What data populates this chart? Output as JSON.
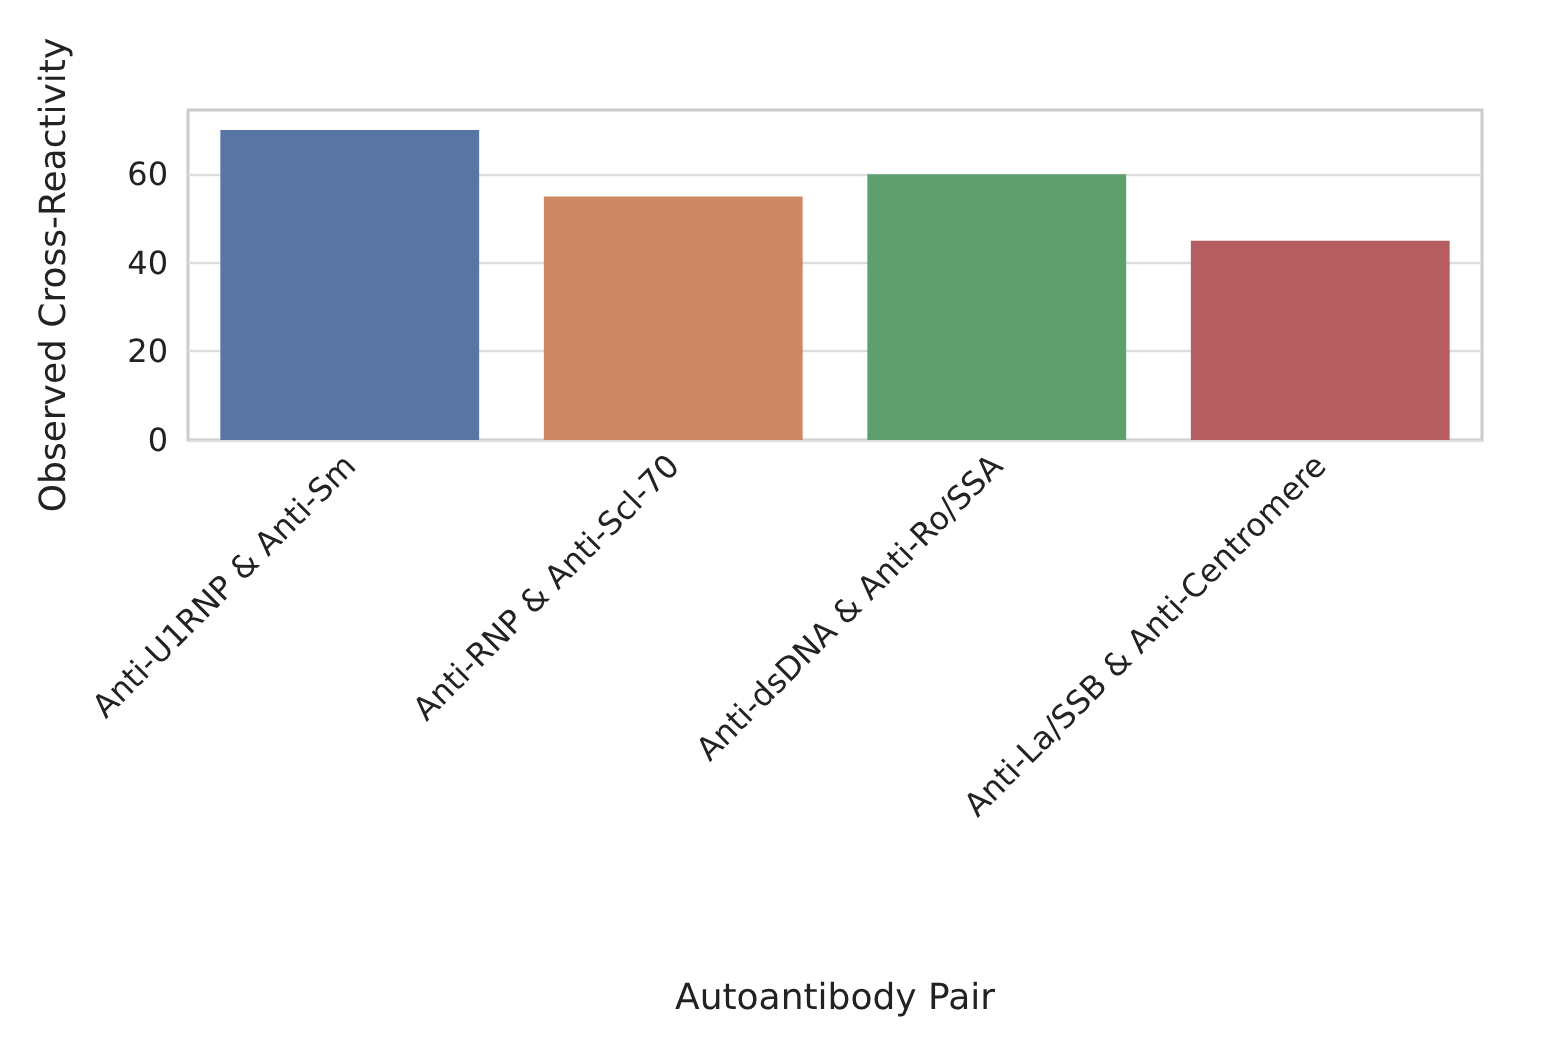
{
  "chart_data": {
    "type": "bar",
    "xlabel": "Autoantibody Pair",
    "ylabel": "Observed Cross-Reactivity",
    "categories": [
      "Anti-U1RNP & Anti-Sm",
      "Anti-RNP & Anti-Scl-70",
      "Anti-dsDNA & Anti-Ro/SSA",
      "Anti-La/SSB & Anti-Centromere"
    ],
    "values": [
      70,
      55,
      60,
      45
    ],
    "colors": [
      "#5875a4",
      "#cc8963",
      "#5f9e6e",
      "#b55d60"
    ],
    "ylim": [
      0,
      74.5
    ],
    "yticks": [
      0,
      20,
      40,
      60
    ],
    "grid": "y"
  }
}
